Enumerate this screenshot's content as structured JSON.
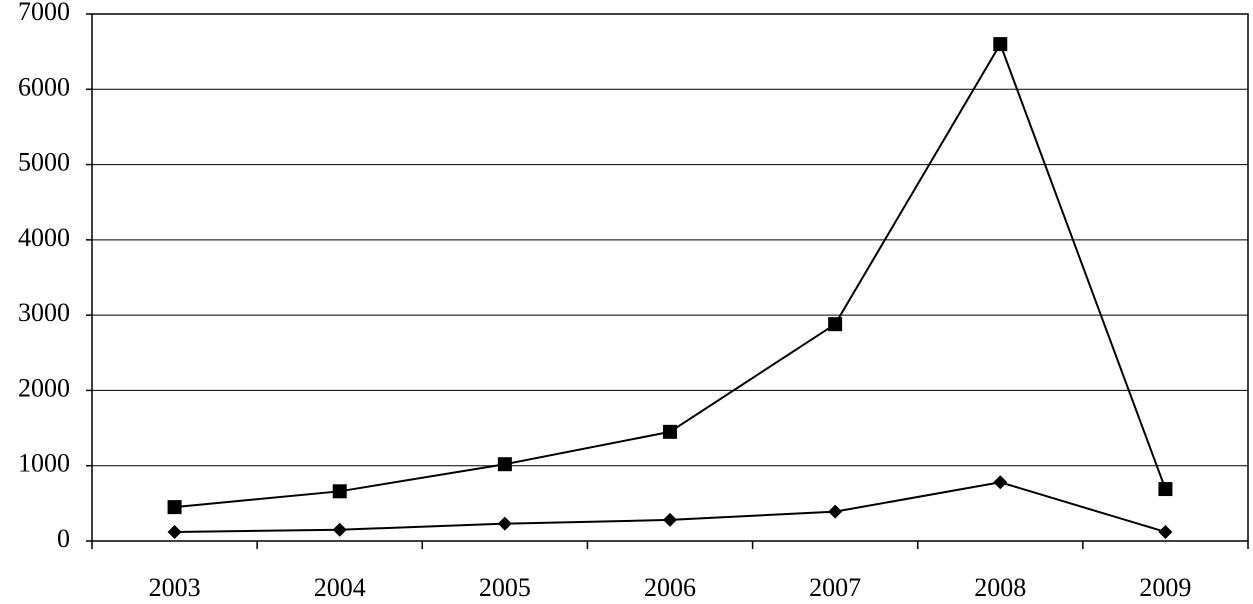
{
  "chart_data": {
    "type": "line",
    "categories": [
      "2003",
      "2004",
      "2005",
      "2006",
      "2007",
      "2008",
      "2009"
    ],
    "series": [
      {
        "color": "#000000",
        "marker": "square",
        "values": [
          450,
          660,
          1020,
          1450,
          2880,
          6600,
          690
        ]
      },
      {
        "color": "#000000",
        "marker": "diamond",
        "values": [
          120,
          150,
          230,
          280,
          390,
          780,
          120
        ]
      }
    ],
    "ylim": [
      0,
      7000
    ],
    "yticks": [
      0,
      1000,
      2000,
      3000,
      4000,
      5000,
      6000,
      7000
    ],
    "grid": true
  }
}
